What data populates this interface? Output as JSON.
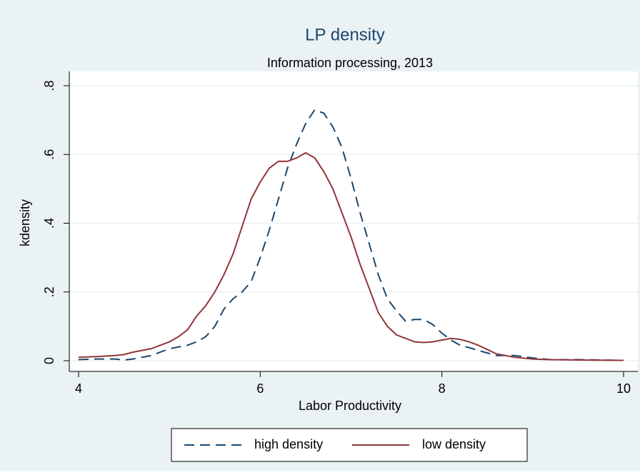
{
  "chart_data": {
    "type": "line",
    "title": "LP density",
    "subtitle": "Information processing, 2013",
    "x_label": "Labor Productivity",
    "y_label": "kdensity",
    "x": [
      4.0,
      4.2,
      4.4,
      4.5,
      4.6,
      4.8,
      5.0,
      5.1,
      5.2,
      5.3,
      5.4,
      5.5,
      5.6,
      5.7,
      5.8,
      5.9,
      6.0,
      6.1,
      6.2,
      6.3,
      6.4,
      6.5,
      6.6,
      6.7,
      6.8,
      6.9,
      7.0,
      7.1,
      7.2,
      7.3,
      7.4,
      7.5,
      7.6,
      7.7,
      7.8,
      7.9,
      8.0,
      8.1,
      8.2,
      8.3,
      8.4,
      8.6,
      8.8,
      9.0,
      9.2,
      9.5,
      10.0
    ],
    "series": [
      {
        "name": "high density",
        "color": "#1a476f",
        "style": "dashed",
        "values": [
          0.003,
          0.005,
          0.005,
          0.002,
          0.005,
          0.015,
          0.035,
          0.04,
          0.045,
          0.055,
          0.07,
          0.1,
          0.15,
          0.18,
          0.2,
          0.23,
          0.3,
          0.38,
          0.47,
          0.56,
          0.63,
          0.69,
          0.73,
          0.72,
          0.68,
          0.62,
          0.53,
          0.43,
          0.34,
          0.25,
          0.18,
          0.145,
          0.115,
          0.12,
          0.12,
          0.105,
          0.08,
          0.06,
          0.045,
          0.038,
          0.03,
          0.015,
          0.015,
          0.008,
          0.003,
          0.003,
          0.001
        ]
      },
      {
        "name": "low density",
        "color": "#90353b",
        "style": "solid",
        "values": [
          0.01,
          0.012,
          0.015,
          0.018,
          0.025,
          0.035,
          0.055,
          0.07,
          0.09,
          0.13,
          0.16,
          0.2,
          0.25,
          0.31,
          0.39,
          0.47,
          0.52,
          0.56,
          0.58,
          0.58,
          0.59,
          0.605,
          0.59,
          0.55,
          0.5,
          0.43,
          0.36,
          0.28,
          0.21,
          0.14,
          0.1,
          0.075,
          0.065,
          0.055,
          0.053,
          0.055,
          0.06,
          0.065,
          0.062,
          0.055,
          0.045,
          0.02,
          0.01,
          0.005,
          0.003,
          0.002,
          0.001
        ]
      }
    ],
    "xlim": [
      4,
      10
    ],
    "xticks": [
      4,
      6,
      8,
      10
    ],
    "ylim": [
      0,
      0.8
    ],
    "yticks": [
      0,
      {
        "value": 0.2,
        "label": ".2"
      },
      {
        "value": 0.4,
        "label": ".4"
      },
      {
        "value": 0.6,
        "label": ".6"
      },
      {
        "value": 0.8,
        "label": ".8"
      }
    ],
    "grid": true,
    "legend": "bottom"
  }
}
